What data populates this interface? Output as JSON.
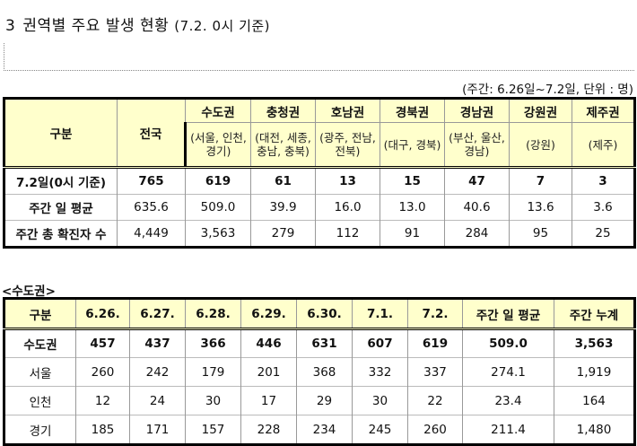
{
  "title": {
    "number": "3",
    "text": "권역별 주요 발생 현황",
    "subtitle": "(7.2. 0시 기준)"
  },
  "unit_note": "(주간: 6.26일~7.2일, 단위 : 명)",
  "table1": {
    "corner": "구분",
    "national": "전국",
    "regions": [
      {
        "name": "수도권",
        "areas": "(서울, 인천, 경기)"
      },
      {
        "name": "충청권",
        "areas": "(대전, 세종, 충남, 충북)"
      },
      {
        "name": "호남권",
        "areas": "(광주, 전남, 전북)"
      },
      {
        "name": "경북권",
        "areas": "(대구, 경북)"
      },
      {
        "name": "경남권",
        "areas": "(부산, 울산, 경남)"
      },
      {
        "name": "강원권",
        "areas": "(강원)"
      },
      {
        "name": "제주권",
        "areas": "(제주)"
      }
    ],
    "rows": [
      {
        "label": "7.2일(0시 기준)",
        "values": [
          "765",
          "619",
          "61",
          "13",
          "15",
          "47",
          "7",
          "3"
        ]
      },
      {
        "label": "주간 일 평균",
        "values": [
          "635.6",
          "509.0",
          "39.9",
          "16.0",
          "13.0",
          "40.6",
          "13.6",
          "3.6"
        ]
      },
      {
        "label": "주간 총 확진자 수",
        "values": [
          "4,449",
          "3,563",
          "279",
          "112",
          "91",
          "284",
          "95",
          "25"
        ]
      }
    ]
  },
  "table2": {
    "label": "<수도권>",
    "headers": [
      "구분",
      "6.26.",
      "6.27.",
      "6.28.",
      "6.29.",
      "6.30.",
      "7.1.",
      "7.2.",
      "주간 일 평균",
      "주간 누계"
    ],
    "rows": [
      {
        "label": "수도권",
        "values": [
          "457",
          "437",
          "366",
          "446",
          "631",
          "607",
          "619",
          "509.0",
          "3,563"
        ]
      },
      {
        "label": "서울",
        "values": [
          "260",
          "242",
          "179",
          "201",
          "368",
          "332",
          "337",
          "274.1",
          "1,919"
        ]
      },
      {
        "label": "인천",
        "values": [
          "12",
          "24",
          "30",
          "17",
          "29",
          "30",
          "22",
          "23.4",
          "164"
        ]
      },
      {
        "label": "경기",
        "values": [
          "185",
          "171",
          "157",
          "228",
          "234",
          "245",
          "260",
          "211.4",
          "1,480"
        ]
      }
    ]
  }
}
